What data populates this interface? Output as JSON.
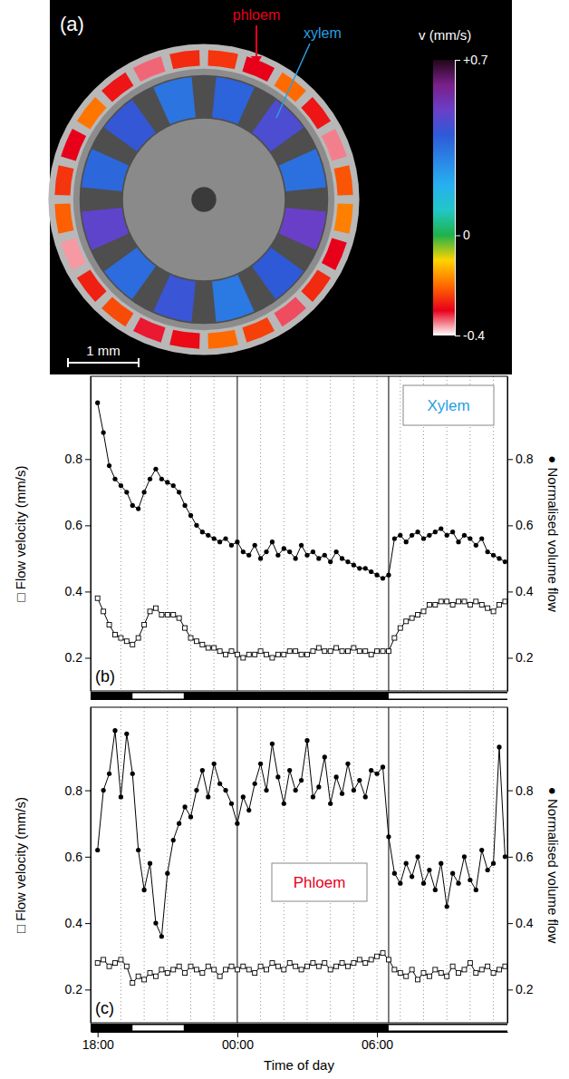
{
  "chart_data": [
    {
      "type": "image",
      "panel_label": "(a)",
      "diameter": 4.4,
      "labels": [
        {
          "text": "phloem",
          "color": "#e8001a"
        },
        {
          "text": "xylem",
          "color": "#2a9ee0"
        }
      ],
      "phloem_values": [
        -0.25,
        -0.3,
        -0.2,
        -0.28,
        -0.35,
        -0.22,
        -0.18,
        -0.3,
        -0.26,
        -0.33,
        -0.24,
        -0.2,
        -0.29,
        -0.31,
        -0.23,
        -0.27,
        -0.36,
        -0.21,
        -0.25,
        -0.3,
        -0.19,
        -0.28,
        -0.34,
        -0.26
      ],
      "xylem_values": [
        0.38,
        0.45,
        0.35,
        0.5,
        0.4,
        0.33,
        0.42,
        0.36,
        0.48,
        0.37,
        0.41,
        0.34
      ],
      "colorbar": {
        "title": "v (mm/s)",
        "range": [
          -0.4,
          0.7
        ],
        "ticks": [
          {
            "value": 0.7,
            "label": "+0.7"
          },
          0,
          -0.4
        ],
        "colormap": [
          "#ffffff",
          "#e8001a",
          "#ff6a00",
          "#ffd400",
          "#1fb24a",
          "#22c7c7",
          "#27b0f0",
          "#2a86e6",
          "#2e5ad8",
          "#6a3fc8",
          "#7a1f8a",
          "#200818"
        ]
      },
      "scale_bar": {
        "value": 1,
        "label": "1 mm"
      }
    },
    {
      "type": "line",
      "panel_label": "(b)",
      "annotation": {
        "text": "Xylem",
        "color": "#2a9ee0"
      },
      "ylabel": "□ Flow velocity (mm/s)",
      "y2label": "● Normalised volume flow",
      "xlim": [
        17.7,
        35.6
      ],
      "ylim": [
        0.1,
        1.05
      ],
      "yticks": [
        0.2,
        0.4,
        0.6,
        0.8
      ],
      "y2lim": [
        0.1,
        1.05
      ],
      "y2ticks": [
        0.2,
        0.4,
        0.6,
        0.8
      ],
      "tick_labels": "y",
      "grid": true,
      "minor_xticks": [
        19,
        20,
        21,
        22,
        23,
        25,
        26,
        27,
        28,
        29,
        30,
        31,
        32,
        33,
        34,
        35
      ],
      "vlines": [
        24,
        30.5
      ],
      "light_periods": [
        [
          19.5,
          21.7
        ],
        [
          30.5,
          35.6
        ]
      ],
      "x": [
        18,
        18.25,
        18.5,
        18.75,
        19,
        19.25,
        19.5,
        19.75,
        20,
        20.25,
        20.5,
        20.75,
        21,
        21.25,
        21.5,
        21.75,
        22,
        22.25,
        22.5,
        22.75,
        23,
        23.25,
        23.5,
        23.75,
        24,
        24.25,
        24.5,
        24.75,
        25,
        25.25,
        25.5,
        25.75,
        26,
        26.25,
        26.5,
        26.75,
        27,
        27.25,
        27.5,
        27.75,
        28,
        28.25,
        28.5,
        28.75,
        29,
        29.25,
        29.5,
        29.75,
        30,
        30.25,
        30.5,
        30.75,
        31,
        31.25,
        31.5,
        31.75,
        32,
        32.25,
        32.5,
        32.75,
        33,
        33.25,
        33.5,
        33.75,
        34,
        34.25,
        34.5,
        34.75,
        35,
        35.25,
        35.5
      ],
      "series": [
        {
          "marker": "square",
          "color": "#000000",
          "values": [
            0.38,
            0.34,
            0.3,
            0.27,
            0.26,
            0.25,
            0.24,
            0.26,
            0.3,
            0.34,
            0.35,
            0.33,
            0.33,
            0.33,
            0.32,
            0.29,
            0.26,
            0.25,
            0.24,
            0.23,
            0.23,
            0.22,
            0.21,
            0.22,
            0.21,
            0.2,
            0.21,
            0.21,
            0.22,
            0.21,
            0.2,
            0.21,
            0.21,
            0.22,
            0.22,
            0.21,
            0.21,
            0.22,
            0.23,
            0.22,
            0.22,
            0.23,
            0.22,
            0.22,
            0.23,
            0.22,
            0.22,
            0.21,
            0.22,
            0.22,
            0.22,
            0.26,
            0.29,
            0.31,
            0.32,
            0.33,
            0.34,
            0.36,
            0.36,
            0.37,
            0.37,
            0.36,
            0.37,
            0.37,
            0.36,
            0.37,
            0.36,
            0.35,
            0.34,
            0.36,
            0.37
          ]
        },
        {
          "marker": "circle",
          "color": "#000000",
          "axis": "y2",
          "values": [
            0.97,
            0.88,
            0.78,
            0.74,
            0.72,
            0.7,
            0.66,
            0.65,
            0.7,
            0.74,
            0.77,
            0.74,
            0.73,
            0.72,
            0.7,
            0.66,
            0.63,
            0.6,
            0.58,
            0.57,
            0.56,
            0.55,
            0.56,
            0.54,
            0.55,
            0.52,
            0.51,
            0.54,
            0.5,
            0.52,
            0.55,
            0.51,
            0.53,
            0.52,
            0.5,
            0.54,
            0.51,
            0.52,
            0.5,
            0.51,
            0.49,
            0.52,
            0.5,
            0.49,
            0.48,
            0.47,
            0.47,
            0.46,
            0.45,
            0.44,
            0.45,
            0.56,
            0.57,
            0.55,
            0.57,
            0.58,
            0.56,
            0.57,
            0.58,
            0.59,
            0.57,
            0.58,
            0.55,
            0.57,
            0.56,
            0.54,
            0.56,
            0.52,
            0.51,
            0.5,
            0.49
          ]
        }
      ]
    },
    {
      "type": "line",
      "panel_label": "(c)",
      "annotation": {
        "text": "Phloem",
        "color": "#e8001a"
      },
      "ylabel": "□ Flow velocity (mm/s)",
      "y2label": "● Normalised volume flow",
      "xlabel": "Time of day",
      "xlim": [
        17.7,
        35.6
      ],
      "xticks": [
        {
          "value": 18,
          "label": "18:00"
        },
        {
          "value": 24,
          "label": "00:00"
        },
        {
          "value": 30,
          "label": "06:00"
        }
      ],
      "ylim": [
        0.1,
        1.05
      ],
      "yticks": [
        0.2,
        0.4,
        0.6,
        0.8
      ],
      "y2lim": [
        0.1,
        1.05
      ],
      "y2ticks": [
        0.2,
        0.4,
        0.6,
        0.8
      ],
      "grid": true,
      "minor_xticks": [
        19,
        20,
        21,
        22,
        23,
        25,
        26,
        27,
        28,
        29,
        30,
        31,
        32,
        33,
        34,
        35
      ],
      "vlines": [
        24,
        30.5
      ],
      "light_periods": [
        [
          19.5,
          21.7
        ],
        [
          30.5,
          35.6
        ]
      ],
      "x": [
        18,
        18.25,
        18.5,
        18.75,
        19,
        19.25,
        19.5,
        19.75,
        20,
        20.25,
        20.5,
        20.75,
        21,
        21.25,
        21.5,
        21.75,
        22,
        22.25,
        22.5,
        22.75,
        23,
        23.25,
        23.5,
        23.75,
        24,
        24.25,
        24.5,
        24.75,
        25,
        25.25,
        25.5,
        25.75,
        26,
        26.25,
        26.5,
        26.75,
        27,
        27.25,
        27.5,
        27.75,
        28,
        28.25,
        28.5,
        28.75,
        29,
        29.25,
        29.5,
        29.75,
        30,
        30.25,
        30.5,
        30.75,
        31,
        31.25,
        31.5,
        31.75,
        32,
        32.25,
        32.5,
        32.75,
        33,
        33.25,
        33.5,
        33.75,
        34,
        34.25,
        34.5,
        34.75,
        35,
        35.25,
        35.5
      ],
      "series": [
        {
          "marker": "square",
          "color": "#000000",
          "values": [
            0.28,
            0.29,
            0.27,
            0.28,
            0.29,
            0.27,
            0.22,
            0.24,
            0.23,
            0.25,
            0.24,
            0.26,
            0.25,
            0.26,
            0.27,
            0.25,
            0.27,
            0.26,
            0.25,
            0.27,
            0.26,
            0.24,
            0.26,
            0.27,
            0.26,
            0.27,
            0.26,
            0.25,
            0.27,
            0.26,
            0.28,
            0.27,
            0.26,
            0.28,
            0.27,
            0.26,
            0.27,
            0.28,
            0.27,
            0.28,
            0.26,
            0.27,
            0.28,
            0.27,
            0.28,
            0.29,
            0.28,
            0.29,
            0.3,
            0.31,
            0.29,
            0.26,
            0.25,
            0.24,
            0.26,
            0.23,
            0.25,
            0.24,
            0.26,
            0.25,
            0.24,
            0.27,
            0.25,
            0.26,
            0.28,
            0.25,
            0.26,
            0.27,
            0.25,
            0.26,
            0.27
          ]
        },
        {
          "marker": "circle",
          "color": "#000000",
          "axis": "y2",
          "values": [
            0.62,
            0.8,
            0.85,
            0.98,
            0.78,
            0.97,
            0.85,
            0.62,
            0.5,
            0.58,
            0.4,
            0.36,
            0.55,
            0.65,
            0.7,
            0.75,
            0.72,
            0.8,
            0.86,
            0.78,
            0.88,
            0.82,
            0.8,
            0.76,
            0.7,
            0.78,
            0.74,
            0.82,
            0.88,
            0.8,
            0.94,
            0.84,
            0.76,
            0.86,
            0.8,
            0.83,
            0.95,
            0.78,
            0.81,
            0.9,
            0.76,
            0.84,
            0.79,
            0.88,
            0.8,
            0.83,
            0.78,
            0.86,
            0.85,
            0.87,
            0.66,
            0.55,
            0.52,
            0.58,
            0.54,
            0.6,
            0.52,
            0.56,
            0.5,
            0.58,
            0.45,
            0.55,
            0.52,
            0.6,
            0.53,
            0.5,
            0.62,
            0.56,
            0.58,
            0.93,
            0.6
          ]
        }
      ]
    }
  ]
}
